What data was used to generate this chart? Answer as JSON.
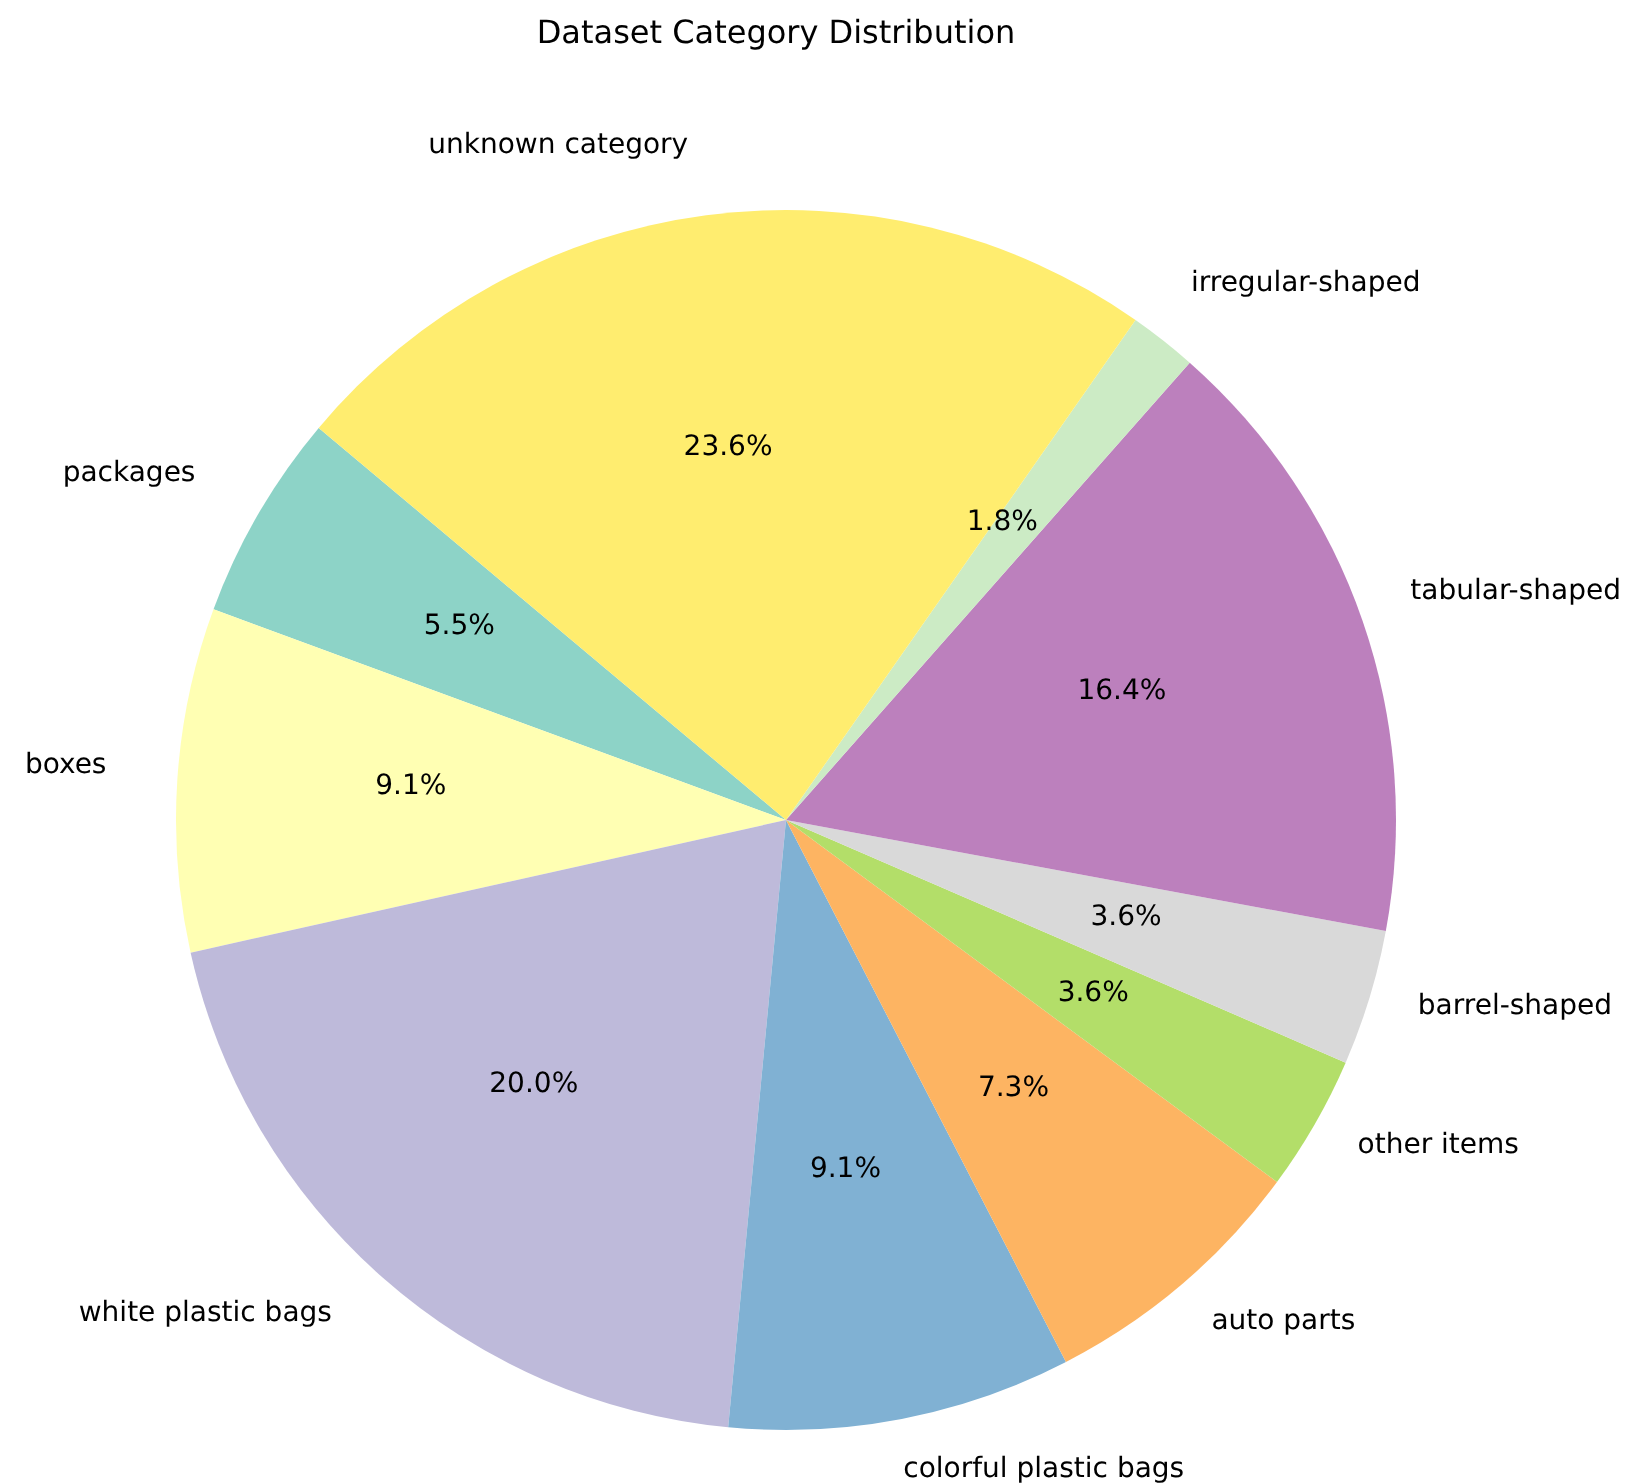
{
  "chart_data": {
    "type": "pie",
    "title": "Dataset Category Distribution",
    "categories": [
      "packages",
      "boxes",
      "white plastic bags",
      "colorful plastic bags",
      "auto parts",
      "other items",
      "barrel-shaped",
      "tabular-shaped",
      "irregular-shaped",
      "unknown category"
    ],
    "values": [
      5.5,
      9.1,
      20.0,
      9.1,
      7.3,
      3.6,
      3.6,
      16.4,
      1.8,
      23.6
    ],
    "value_labels": [
      "5.5%",
      "9.1%",
      "20.0%",
      "9.1%",
      "7.3%",
      "3.6%",
      "3.6%",
      "16.4%",
      "1.8%",
      "23.6%"
    ],
    "colors": [
      "#8dd3c7",
      "#ffffb3",
      "#bebada",
      "#80b1d3",
      "#fdb462",
      "#b3de69",
      "#d9d9d9",
      "#bc80bd",
      "#ccebc5",
      "#ffed6f"
    ],
    "legend": false
  }
}
